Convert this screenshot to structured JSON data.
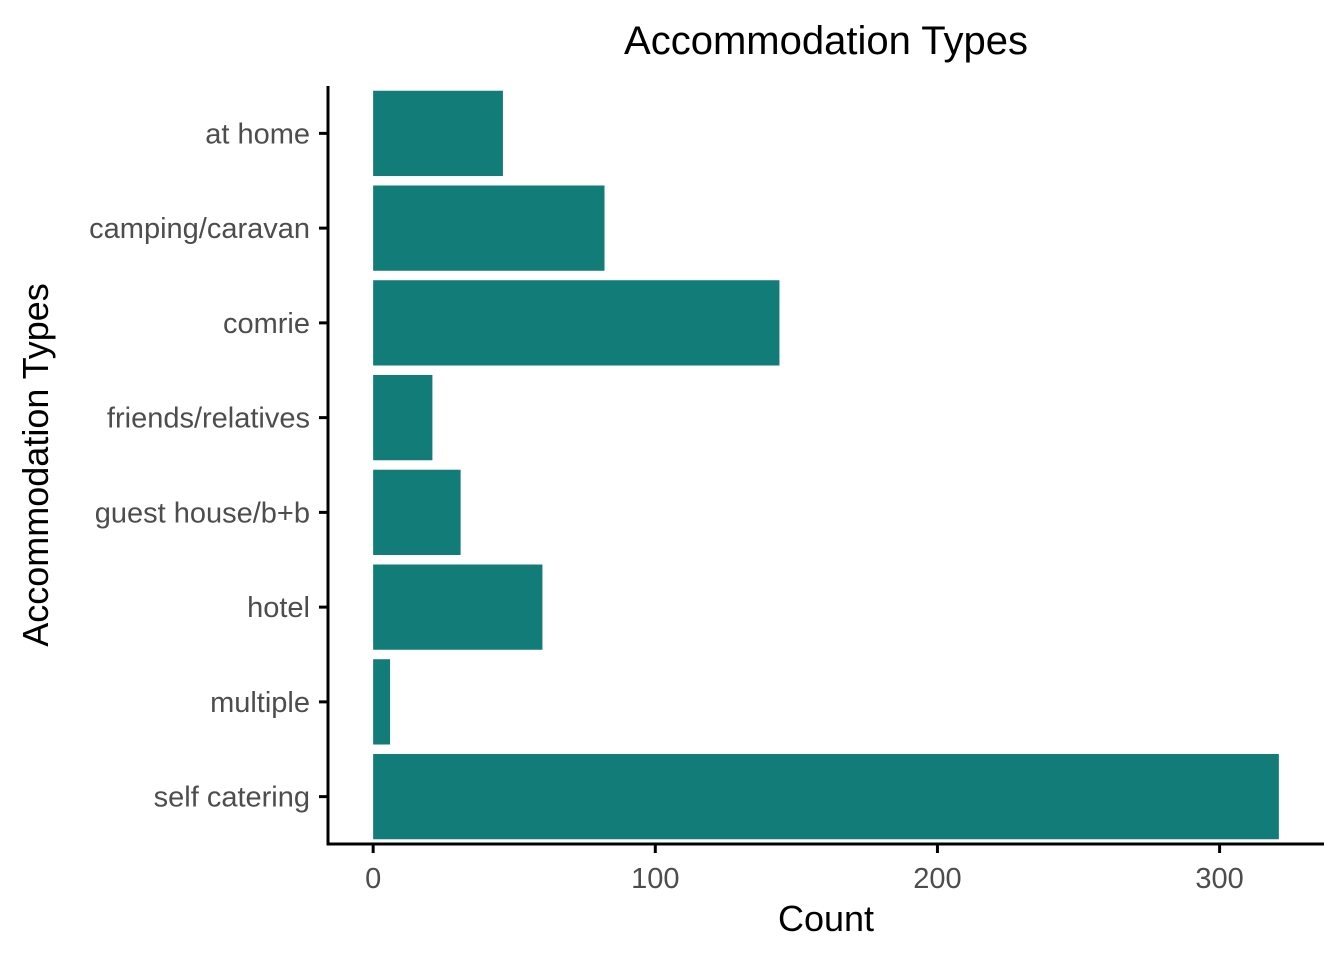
{
  "chart_data": {
    "type": "bar",
    "orientation": "horizontal",
    "title": "Accommodation Types",
    "xlabel": "Count",
    "ylabel": "Accommodation Types",
    "categories": [
      "at home",
      "camping/caravan",
      "comrie",
      "friends/relatives",
      "guest house/b+b",
      "hotel",
      "multiple",
      "self catering"
    ],
    "values": [
      46,
      82,
      144,
      21,
      31,
      60,
      6,
      321
    ],
    "xlim": [
      -16,
      337
    ],
    "xticks": [
      0,
      100,
      200,
      300
    ],
    "grid": false,
    "legend": "none",
    "bar_color": "#127C79",
    "axis_color": "#000000",
    "tick_label_color": "#4d4d4d"
  }
}
